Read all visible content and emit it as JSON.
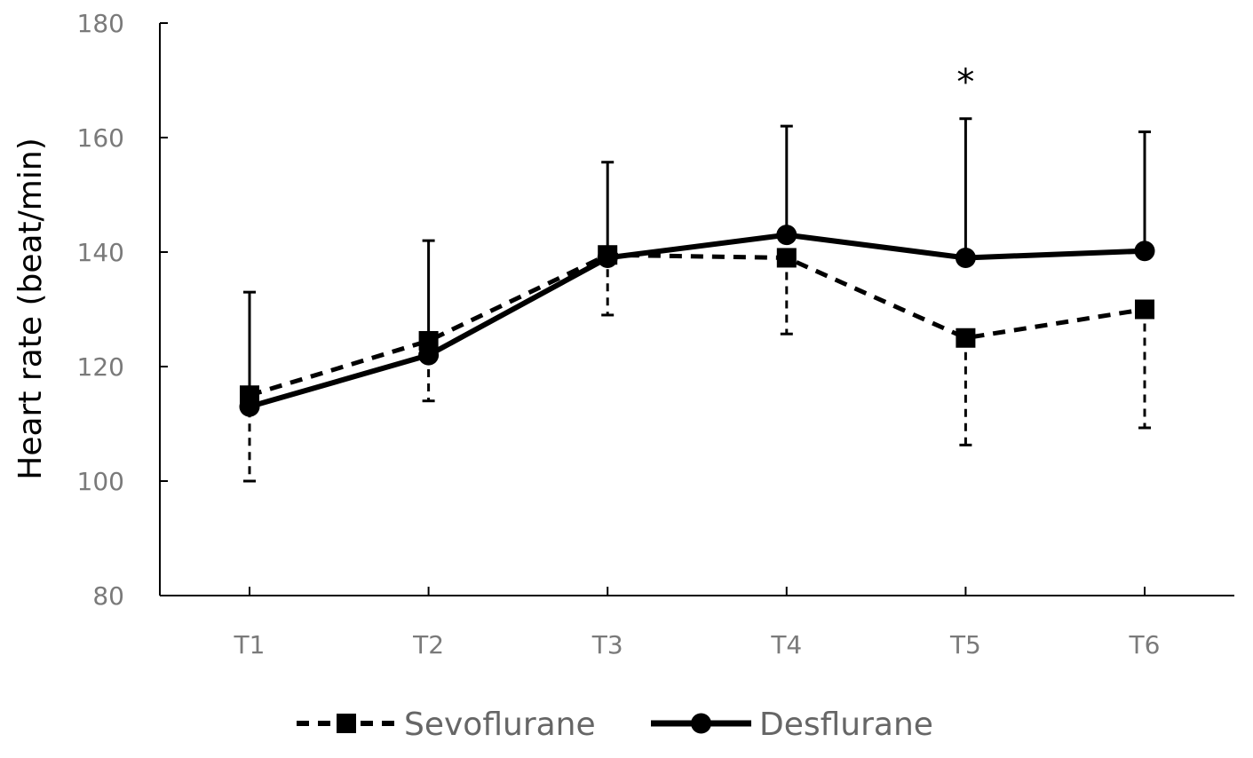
{
  "chart_data": {
    "type": "line",
    "title": "",
    "xlabel": "",
    "ylabel": "Heart rate (beat/min)",
    "categories": [
      "T1",
      "T2",
      "T3",
      "T4",
      "T5",
      "T6"
    ],
    "ylim": [
      80,
      180
    ],
    "yticks": [
      "80",
      "100",
      "120",
      "140",
      "160",
      "180"
    ],
    "grid": false,
    "legend_position": "bottom",
    "series": [
      {
        "name": "Sevoflurane",
        "line_style": "dashed",
        "marker": "square",
        "color": "#000000",
        "values": [
          115,
          124.5,
          139.5,
          139,
          125,
          130
        ],
        "error": [
          15,
          10.5,
          10.5,
          13.3,
          18.7,
          20.7
        ],
        "error_direction": "down"
      },
      {
        "name": "Desflurane",
        "line_style": "solid",
        "marker": "circle",
        "color": "#000000",
        "values": [
          113,
          122,
          139,
          143,
          139,
          140.2
        ],
        "error": [
          20,
          20,
          16.7,
          19,
          24.3,
          20.8
        ],
        "error_direction": "up"
      }
    ],
    "annotations": [
      {
        "category": "T5",
        "text": "*"
      }
    ]
  }
}
